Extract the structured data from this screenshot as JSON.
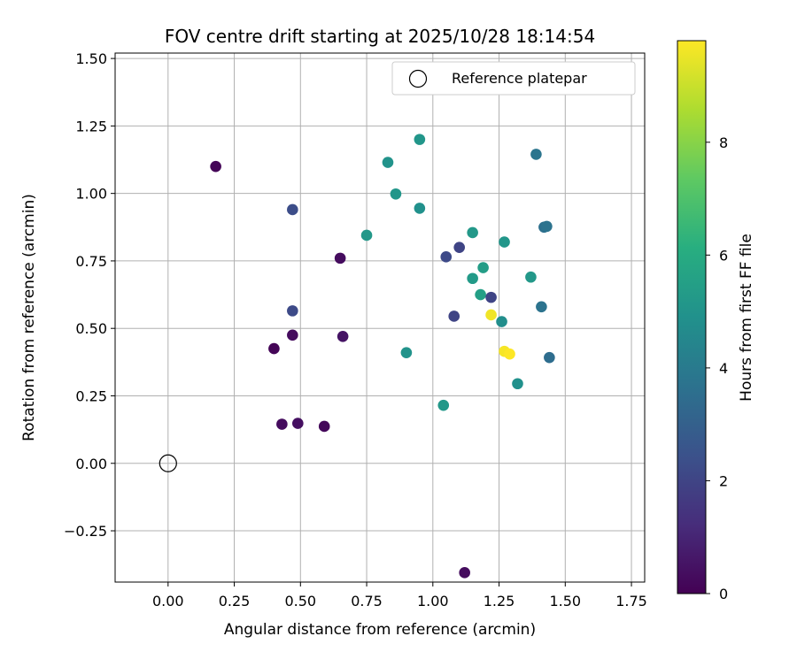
{
  "chart_data": {
    "type": "scatter",
    "title": "FOV centre drift starting at 2025/10/28 18:14:54",
    "xlabel": "Angular distance from reference (arcmin)",
    "ylabel": "Rotation from reference (arcmin)",
    "xlim": [
      -0.2,
      1.8
    ],
    "ylim": [
      -0.44,
      1.52
    ],
    "grid": true,
    "x_ticks": [
      "0.00",
      "0.25",
      "0.50",
      "0.75",
      "1.00",
      "1.25",
      "1.50",
      "1.75"
    ],
    "y_ticks": [
      "−0.25",
      "0.00",
      "0.25",
      "0.50",
      "0.75",
      "1.00",
      "1.25",
      "1.50"
    ],
    "legend": {
      "placement": "upper right",
      "entries": [
        "Reference platepar"
      ]
    },
    "reference_point": {
      "label": "Reference platepar",
      "x": 0.0,
      "y": 0.0
    },
    "colorbar": {
      "label": "Hours from first FF file",
      "colormap": "viridis",
      "range": [
        0,
        9.8
      ],
      "ticks": [
        "0",
        "2",
        "4",
        "6",
        "8"
      ]
    },
    "points": [
      {
        "x": 0.18,
        "y": 1.1,
        "hours": 0.1
      },
      {
        "x": 0.47,
        "y": 0.94,
        "hours": 2.3
      },
      {
        "x": 0.47,
        "y": 0.565,
        "hours": 2.2
      },
      {
        "x": 0.4,
        "y": 0.425,
        "hours": 0.1
      },
      {
        "x": 0.47,
        "y": 0.475,
        "hours": 0.3
      },
      {
        "x": 0.65,
        "y": 0.76,
        "hours": 0.3
      },
      {
        "x": 0.66,
        "y": 0.47,
        "hours": 0.5
      },
      {
        "x": 0.43,
        "y": 0.145,
        "hours": 0.3
      },
      {
        "x": 0.49,
        "y": 0.148,
        "hours": 0.4
      },
      {
        "x": 0.59,
        "y": 0.137,
        "hours": 0.2
      },
      {
        "x": 0.75,
        "y": 0.845,
        "hours": 5.2
      },
      {
        "x": 0.83,
        "y": 1.115,
        "hours": 5.0
      },
      {
        "x": 0.86,
        "y": 0.998,
        "hours": 5.1
      },
      {
        "x": 0.95,
        "y": 0.945,
        "hours": 4.9
      },
      {
        "x": 0.95,
        "y": 1.2,
        "hours": 5.1
      },
      {
        "x": 0.9,
        "y": 0.41,
        "hours": 5.0
      },
      {
        "x": 1.04,
        "y": 0.215,
        "hours": 5.2
      },
      {
        "x": 1.05,
        "y": 0.765,
        "hours": 2.2
      },
      {
        "x": 1.1,
        "y": 0.8,
        "hours": 2.0
      },
      {
        "x": 1.08,
        "y": 0.545,
        "hours": 2.0
      },
      {
        "x": 1.12,
        "y": -0.405,
        "hours": 0.3
      },
      {
        "x": 1.15,
        "y": 0.685,
        "hours": 5.3
      },
      {
        "x": 1.15,
        "y": 0.855,
        "hours": 5.2
      },
      {
        "x": 1.18,
        "y": 0.625,
        "hours": 5.5
      },
      {
        "x": 1.19,
        "y": 0.725,
        "hours": 5.4
      },
      {
        "x": 1.22,
        "y": 0.615,
        "hours": 2.0
      },
      {
        "x": 1.22,
        "y": 0.55,
        "hours": 9.6
      },
      {
        "x": 1.26,
        "y": 0.525,
        "hours": 4.8
      },
      {
        "x": 1.27,
        "y": 0.82,
        "hours": 5.1
      },
      {
        "x": 1.27,
        "y": 0.415,
        "hours": 9.7
      },
      {
        "x": 1.29,
        "y": 0.405,
        "hours": 9.8
      },
      {
        "x": 1.32,
        "y": 0.295,
        "hours": 4.9
      },
      {
        "x": 1.37,
        "y": 0.69,
        "hours": 5.2
      },
      {
        "x": 1.39,
        "y": 1.145,
        "hours": 3.8
      },
      {
        "x": 1.41,
        "y": 0.58,
        "hours": 3.7
      },
      {
        "x": 1.42,
        "y": 0.875,
        "hours": 3.6
      },
      {
        "x": 1.43,
        "y": 0.878,
        "hours": 3.7
      },
      {
        "x": 1.44,
        "y": 0.392,
        "hours": 3.5
      }
    ]
  }
}
